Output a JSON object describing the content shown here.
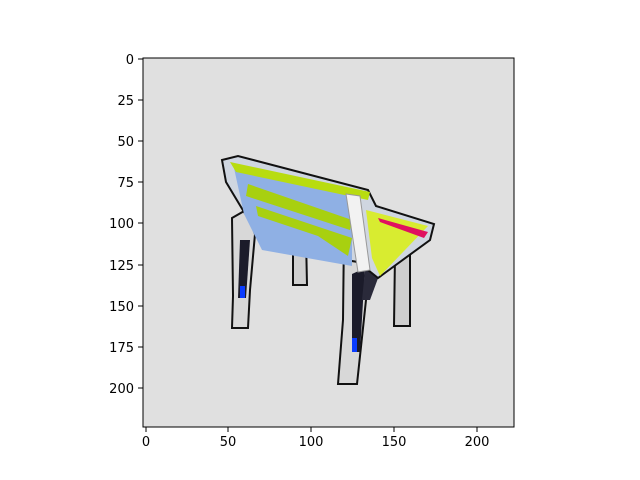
{
  "figure": {
    "image_description": "pixelated low-res render of a chair/bench with light-blue and yellow-green seat on gray background",
    "background_color": "#e0e0e0",
    "x_ticks": [
      "0",
      "50",
      "100",
      "150",
      "200"
    ],
    "y_ticks": [
      "0",
      "25",
      "50",
      "75",
      "100",
      "125",
      "150",
      "175",
      "200"
    ],
    "x_range": [
      0,
      224
    ],
    "y_range": [
      224,
      0
    ]
  }
}
